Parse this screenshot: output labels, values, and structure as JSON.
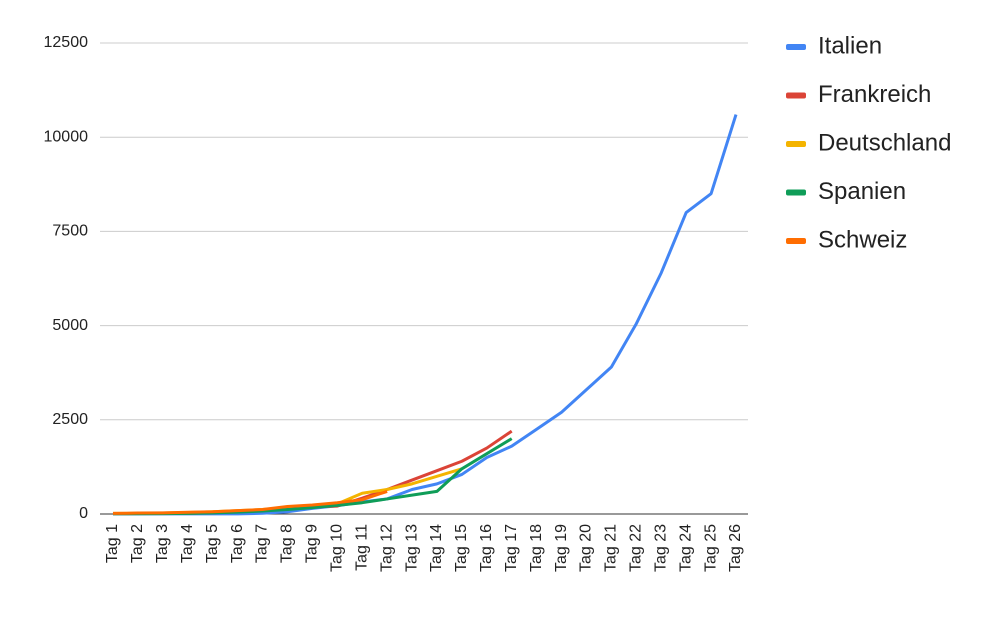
{
  "chart_data": {
    "type": "line",
    "categories": [
      "Tag 1",
      "Tag 2",
      "Tag 3",
      "Tag 4",
      "Tag 5",
      "Tag 6",
      "Tag 7",
      "Tag 8",
      "Tag 9",
      "Tag 10",
      "Tag 11",
      "Tag 12",
      "Tag 13",
      "Tag 14",
      "Tag 15",
      "Tag 16",
      "Tag 17",
      "Tag 18",
      "Tag 19",
      "Tag 20",
      "Tag 21",
      "Tag 22",
      "Tag 23",
      "Tag 24",
      "Tag 25",
      "Tag 26"
    ],
    "series": [
      {
        "name": "Italien",
        "color": "#4285f4",
        "values": [
          3,
          3,
          3,
          3,
          3,
          3,
          20,
          60,
          150,
          220,
          320,
          400,
          650,
          800,
          1050,
          1500,
          1800,
          2250,
          2700,
          3300,
          3900,
          5050,
          6400,
          8000,
          8500,
          10600
        ]
      },
      {
        "name": "Frankreich",
        "color": "#db4437",
        "values": [
          10,
          12,
          12,
          18,
          38,
          57,
          100,
          130,
          190,
          210,
          420,
          650,
          900,
          1150,
          1400,
          1750,
          2200,
          null,
          null,
          null,
          null,
          null,
          null,
          null,
          null,
          null
        ]
      },
      {
        "name": "Deutschland",
        "color": "#f4b400",
        "values": [
          15,
          20,
          25,
          40,
          60,
          90,
          120,
          170,
          220,
          270,
          550,
          650,
          800,
          1000,
          1200,
          null,
          null,
          null,
          null,
          null,
          null,
          null,
          null,
          null,
          null,
          null
        ]
      },
      {
        "name": "Spanien",
        "color": "#0f9d58",
        "values": [
          5,
          8,
          10,
          15,
          30,
          50,
          80,
          120,
          170,
          230,
          300,
          400,
          500,
          600,
          1200,
          1600,
          2000,
          null,
          null,
          null,
          null,
          null,
          null,
          null,
          null,
          null
        ]
      },
      {
        "name": "Schweiz",
        "color": "#ff6d01",
        "values": [
          15,
          25,
          30,
          45,
          60,
          90,
          120,
          200,
          240,
          300,
          380,
          600,
          null,
          null,
          null,
          null,
          null,
          null,
          null,
          null,
          null,
          null,
          null,
          null,
          null,
          null
        ]
      }
    ],
    "ylim": [
      0,
      12500
    ],
    "yticks": [
      0,
      2500,
      5000,
      7500,
      10000,
      12500
    ],
    "grid": true,
    "legend": "right"
  }
}
